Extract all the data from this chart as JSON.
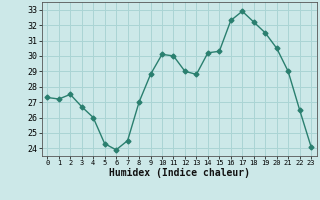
{
  "x": [
    0,
    1,
    2,
    3,
    4,
    5,
    6,
    7,
    8,
    9,
    10,
    11,
    12,
    13,
    14,
    15,
    16,
    17,
    18,
    19,
    20,
    21,
    22,
    23
  ],
  "y": [
    27.3,
    27.2,
    27.5,
    26.7,
    26.0,
    24.3,
    23.9,
    24.5,
    27.0,
    28.8,
    30.1,
    30.0,
    29.0,
    28.8,
    30.2,
    30.3,
    32.3,
    32.9,
    32.2,
    31.5,
    30.5,
    29.0,
    26.5,
    24.1
  ],
  "line_color": "#2a7f6f",
  "marker": "D",
  "markersize": 2.5,
  "linewidth": 1.0,
  "bg_color": "#cce8e8",
  "grid_color": "#aad4d4",
  "xlabel": "Humidex (Indice chaleur)",
  "xlabel_fontsize": 7,
  "tick_fontsize": 6.5,
  "yticks": [
    24,
    25,
    26,
    27,
    28,
    29,
    30,
    31,
    32,
    33
  ],
  "xticks": [
    0,
    1,
    2,
    3,
    4,
    5,
    6,
    7,
    8,
    9,
    10,
    11,
    12,
    13,
    14,
    15,
    16,
    17,
    18,
    19,
    20,
    21,
    22,
    23
  ],
  "ylim": [
    23.5,
    33.5
  ],
  "xlim": [
    -0.5,
    23.5
  ]
}
